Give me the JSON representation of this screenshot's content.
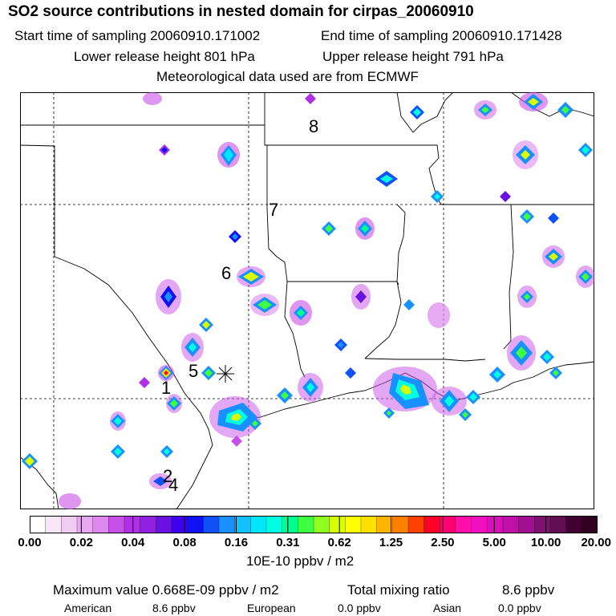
{
  "header": {
    "title": "SO2 source contributions in nested domain for cirpas_20060910",
    "start_label": "Start time of sampling 20060910.171002",
    "end_label": "End time of sampling 20060910.171428",
    "lower_label": "Lower release height  801 hPa",
    "upper_label": "Upper release height  791 hPa",
    "met_label": "Meteorological data used are from ECMWF"
  },
  "map": {
    "markers": [
      "1",
      "2",
      "4",
      "5",
      "6",
      "7",
      "8"
    ],
    "receptor_icon": "asterisk-icon"
  },
  "colorbar": {
    "ticks": [
      "0.00",
      "0.02",
      "0.04",
      "0.08",
      "0.16",
      "0.31",
      "0.62",
      "1.25",
      "2.50",
      "5.00",
      "10.00",
      "20.00"
    ],
    "unit": "10E-10 ppbv / m2",
    "colors": [
      "#ffffff",
      "#f8e6f8",
      "#f0ccf0",
      "#e6a8ee",
      "#dc88ec",
      "#c850e8",
      "#b030e6",
      "#9020e4",
      "#6a10e0",
      "#4000ee",
      "#1010f0",
      "#1050f8",
      "#1890ff",
      "#10c0ff",
      "#00e6ff",
      "#00ffe0",
      "#00ff90",
      "#40ff40",
      "#90ff20",
      "#d8ff00",
      "#ffff00",
      "#ffe000",
      "#ffb400",
      "#ff8000",
      "#ff4000",
      "#ff0028",
      "#ff0070",
      "#ff10a8",
      "#f010c0",
      "#d810b8",
      "#c010a8",
      "#a01090",
      "#801070",
      "#601050",
      "#400030",
      "#300020"
    ]
  },
  "footer": {
    "max_label": "Maximum value  0.668E-09 ppbv / m2",
    "total_label": "Total mixing ratio",
    "total_value": "8.6 ppbv",
    "american_label": "American",
    "american_value": "8.6 ppbv",
    "european_label": "European",
    "european_value": "0.0 ppbv",
    "asian_label": "Asian",
    "asian_value": "0.0 ppbv"
  }
}
